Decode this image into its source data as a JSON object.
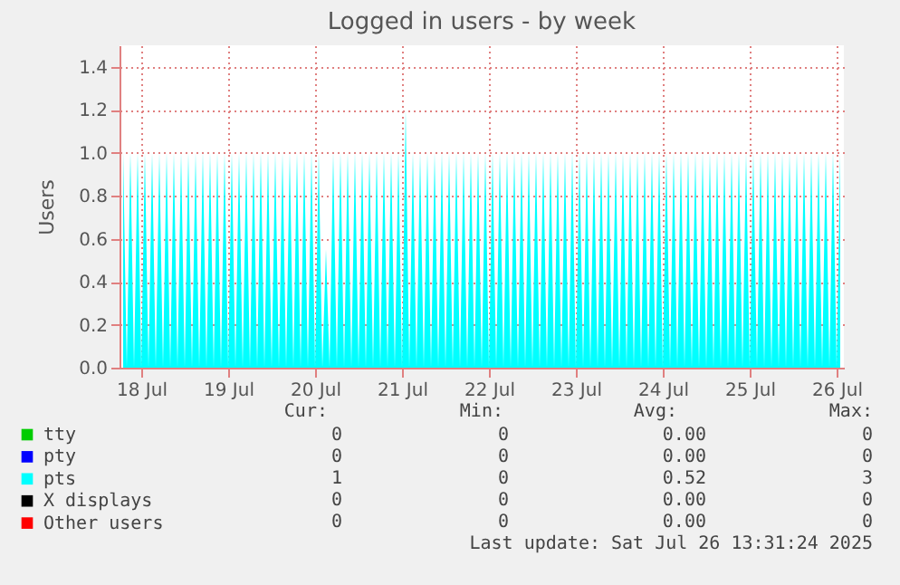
{
  "chart_data": {
    "type": "area",
    "title": "Logged in users - by week",
    "ylabel": "Users",
    "xlim": [
      "2025-07-17T18:00",
      "2025-07-26T02:00"
    ],
    "xticks": [
      {
        "value": "2025-07-18",
        "label": "18 Jul"
      },
      {
        "value": "2025-07-19",
        "label": "19 Jul"
      },
      {
        "value": "2025-07-20",
        "label": "20 Jul"
      },
      {
        "value": "2025-07-21",
        "label": "21 Jul"
      },
      {
        "value": "2025-07-22",
        "label": "22 Jul"
      },
      {
        "value": "2025-07-23",
        "label": "23 Jul"
      },
      {
        "value": "2025-07-24",
        "label": "24 Jul"
      },
      {
        "value": "2025-07-25",
        "label": "25 Jul"
      },
      {
        "value": "2025-07-26",
        "label": "26 Jul"
      }
    ],
    "ylim": [
      0,
      1.5
    ],
    "yticks": [
      {
        "value": 0,
        "label": "0.0"
      },
      0.2,
      0.4,
      0.6,
      0.8,
      {
        "value": 1,
        "label": "1.0"
      },
      1.2,
      1.4
    ],
    "grid": true,
    "legend": "bottom",
    "series": [
      {
        "name": "tty",
        "type": "line",
        "color": "#00cc00"
      },
      {
        "name": "pty",
        "type": "line",
        "color": "#0000ff"
      },
      {
        "name": "pts",
        "color": "#00ffff",
        "x": [
          "2025-07-17T19:00",
          "2025-07-17T20:00",
          "2025-07-17T21:00",
          "2025-07-17T22:00",
          "2025-07-17T23:00",
          "2025-07-18T00:00",
          "2025-07-18T01:00",
          "2025-07-18T02:00",
          "2025-07-18T03:00",
          "2025-07-18T04:00",
          "2025-07-18T05:00",
          "2025-07-18T06:00",
          "2025-07-18T07:00",
          "2025-07-18T08:00",
          "2025-07-18T09:00",
          "2025-07-18T10:00",
          "2025-07-18T11:00",
          "2025-07-18T12:00",
          "2025-07-18T13:00",
          "2025-07-18T14:00",
          "2025-07-18T15:00",
          "2025-07-18T16:00",
          "2025-07-18T17:00",
          "2025-07-18T18:00",
          "2025-07-18T19:00",
          "2025-07-18T20:00",
          "2025-07-18T21:00",
          "2025-07-18T22:00",
          "2025-07-18T23:00",
          "2025-07-19T00:00",
          "2025-07-19T01:00",
          "2025-07-19T02:00",
          "2025-07-19T03:00",
          "2025-07-19T04:00",
          "2025-07-19T05:00",
          "2025-07-19T06:00",
          "2025-07-19T07:00",
          "2025-07-19T08:00",
          "2025-07-19T09:00",
          "2025-07-19T10:00",
          "2025-07-19T11:00",
          "2025-07-19T12:00",
          "2025-07-19T13:00",
          "2025-07-19T14:00",
          "2025-07-19T15:00",
          "2025-07-19T16:00",
          "2025-07-19T17:00",
          "2025-07-19T18:00",
          "2025-07-19T19:00",
          "2025-07-19T20:00",
          "2025-07-19T21:00",
          "2025-07-19T22:00",
          "2025-07-19T23:00",
          "2025-07-20T00:00",
          "2025-07-20T01:00",
          "2025-07-20T02:00",
          "2025-07-20T03:00",
          "2025-07-20T04:00",
          "2025-07-20T05:00",
          "2025-07-20T06:00",
          "2025-07-20T07:00",
          "2025-07-20T08:00",
          "2025-07-20T09:00",
          "2025-07-20T10:00",
          "2025-07-20T11:00",
          "2025-07-20T12:00",
          "2025-07-20T13:00",
          "2025-07-20T14:00",
          "2025-07-20T15:00",
          "2025-07-20T16:00",
          "2025-07-20T17:00",
          "2025-07-20T18:00",
          "2025-07-20T19:00",
          "2025-07-20T20:00",
          "2025-07-20T21:00",
          "2025-07-20T22:00",
          "2025-07-20T23:00",
          "2025-07-21T00:00",
          "2025-07-21T01:00",
          "2025-07-21T02:00",
          "2025-07-21T03:00",
          "2025-07-21T04:00",
          "2025-07-21T05:00",
          "2025-07-21T06:00",
          "2025-07-21T07:00",
          "2025-07-21T08:00",
          "2025-07-21T09:00",
          "2025-07-21T10:00",
          "2025-07-21T11:00",
          "2025-07-21T12:00",
          "2025-07-21T13:00",
          "2025-07-21T14:00",
          "2025-07-21T15:00",
          "2025-07-21T16:00",
          "2025-07-21T17:00",
          "2025-07-21T18:00",
          "2025-07-21T19:00",
          "2025-07-21T20:00",
          "2025-07-21T21:00",
          "2025-07-21T22:00",
          "2025-07-21T23:00",
          "2025-07-22T00:00",
          "2025-07-22T01:00",
          "2025-07-22T02:00",
          "2025-07-22T03:00",
          "2025-07-22T04:00",
          "2025-07-22T05:00",
          "2025-07-22T06:00",
          "2025-07-22T07:00",
          "2025-07-22T08:00",
          "2025-07-22T09:00",
          "2025-07-22T10:00",
          "2025-07-22T11:00",
          "2025-07-22T12:00",
          "2025-07-22T13:00",
          "2025-07-22T14:00",
          "2025-07-22T15:00",
          "2025-07-22T16:00",
          "2025-07-22T17:00",
          "2025-07-22T18:00",
          "2025-07-22T19:00",
          "2025-07-22T20:00",
          "2025-07-22T21:00",
          "2025-07-22T22:00",
          "2025-07-22T23:00",
          "2025-07-23T00:00",
          "2025-07-23T01:00",
          "2025-07-23T02:00",
          "2025-07-23T03:00",
          "2025-07-23T04:00",
          "2025-07-23T05:00",
          "2025-07-23T06:00",
          "2025-07-23T07:00",
          "2025-07-23T08:00",
          "2025-07-23T09:00",
          "2025-07-23T10:00",
          "2025-07-23T11:00",
          "2025-07-23T12:00",
          "2025-07-23T13:00",
          "2025-07-23T14:00",
          "2025-07-23T15:00",
          "2025-07-23T16:00",
          "2025-07-23T17:00",
          "2025-07-23T18:00",
          "2025-07-23T19:00",
          "2025-07-23T20:00",
          "2025-07-23T21:00",
          "2025-07-23T22:00",
          "2025-07-23T23:00",
          "2025-07-24T00:00",
          "2025-07-24T01:00",
          "2025-07-24T02:00",
          "2025-07-24T03:00",
          "2025-07-24T04:00",
          "2025-07-24T05:00",
          "2025-07-24T06:00",
          "2025-07-24T07:00",
          "2025-07-24T08:00",
          "2025-07-24T09:00",
          "2025-07-24T10:00",
          "2025-07-24T11:00",
          "2025-07-24T12:00",
          "2025-07-24T13:00",
          "2025-07-24T14:00",
          "2025-07-24T15:00",
          "2025-07-24T16:00",
          "2025-07-24T17:00",
          "2025-07-24T18:00",
          "2025-07-24T19:00",
          "2025-07-24T20:00",
          "2025-07-24T21:00",
          "2025-07-24T22:00",
          "2025-07-24T23:00",
          "2025-07-25T00:00",
          "2025-07-25T01:00",
          "2025-07-25T02:00",
          "2025-07-25T03:00",
          "2025-07-25T04:00",
          "2025-07-25T05:00",
          "2025-07-25T06:00",
          "2025-07-25T07:00",
          "2025-07-25T08:00",
          "2025-07-25T09:00",
          "2025-07-25T10:00",
          "2025-07-25T11:00",
          "2025-07-25T12:00",
          "2025-07-25T13:00",
          "2025-07-25T14:00",
          "2025-07-25T15:00",
          "2025-07-25T16:00",
          "2025-07-25T17:00",
          "2025-07-25T18:00",
          "2025-07-25T19:00",
          "2025-07-25T20:00",
          "2025-07-25T21:00",
          "2025-07-25T22:00",
          "2025-07-25T23:00",
          "2025-07-26T00:00",
          "2025-07-26T01:00"
        ],
        "values": [
          1,
          0,
          1,
          0,
          1,
          0,
          1,
          0,
          1,
          0,
          1,
          0,
          1,
          0,
          1,
          0,
          1,
          0,
          1,
          0,
          1,
          0,
          1,
          0,
          1,
          0,
          1,
          0,
          1,
          0,
          1,
          0,
          1,
          0,
          1,
          0,
          1,
          0,
          1,
          0,
          1,
          0,
          1,
          0,
          1,
          0,
          1,
          0,
          1,
          0,
          1,
          0,
          1,
          0,
          1,
          0,
          0.55,
          0,
          1,
          0,
          1,
          0,
          1,
          0,
          1,
          0,
          1,
          0,
          1,
          0,
          1,
          0,
          1,
          0,
          1,
          0,
          1,
          0,
          1.2,
          0,
          1,
          0,
          1,
          0,
          1,
          0,
          1,
          0,
          1,
          0,
          1,
          0,
          1,
          0,
          1,
          0,
          1,
          0,
          1,
          0,
          1,
          0,
          1,
          0,
          1,
          0,
          1,
          0,
          1,
          0,
          1,
          0,
          1,
          0,
          1,
          0,
          1,
          0,
          1,
          0,
          1,
          0,
          1,
          0,
          1,
          0,
          1,
          0,
          1,
          0,
          1,
          0,
          1,
          0,
          1,
          0,
          1,
          0,
          1,
          0,
          1,
          0,
          1,
          0,
          1,
          0,
          1,
          0,
          1,
          0,
          1,
          0,
          1,
          0,
          1,
          0,
          1,
          0,
          1,
          0,
          1,
          0,
          1,
          0,
          1,
          0,
          1,
          0,
          1,
          0,
          1,
          0,
          1,
          0,
          1,
          0,
          1,
          0,
          1,
          0,
          1,
          0,
          1,
          0,
          1,
          0,
          1,
          0,
          1,
          0,
          1,
          0,
          1,
          0,
          1,
          0,
          1,
          0,
          1
        ]
      },
      {
        "name": "X displays",
        "type": "line",
        "color": "#000000"
      },
      {
        "name": "Other users",
        "type": "line",
        "color": "#ff0000"
      }
    ],
    "annotations": [
      "Cur:",
      "Min:",
      "Avg:",
      "Max:",
      "0",
      "0",
      "0.00",
      "0",
      "0",
      "0",
      "0.00",
      "0",
      "1",
      "0",
      "0.52",
      "3",
      "0",
      "0",
      "0.00",
      "0",
      "0",
      "0",
      "0.00",
      "0",
      "Last update: Sat Jul 26 13:31:24 2025"
    ]
  }
}
